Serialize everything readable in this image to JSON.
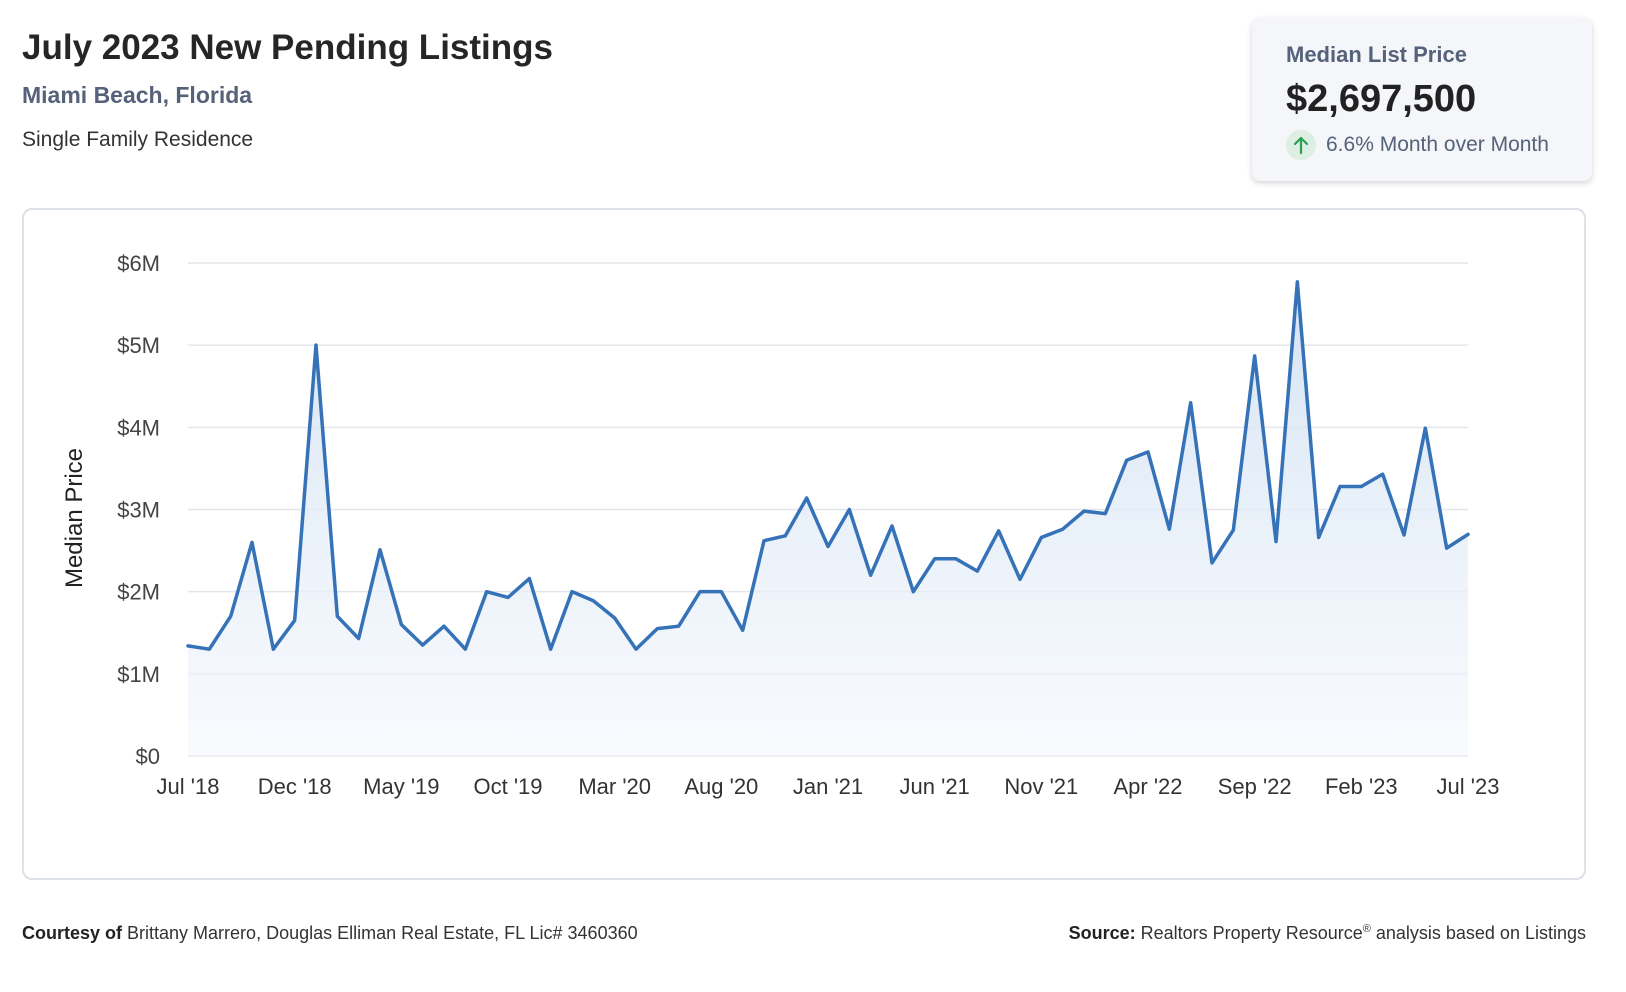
{
  "header": {
    "title": "July 2023 New Pending Listings",
    "location": "Miami Beach, Florida",
    "property_type": "Single Family Residence"
  },
  "stat_card": {
    "label": "Median List Price",
    "value": "$2,697,500",
    "change": "6.6% Month over Month",
    "change_direction": "up",
    "icon": "arrow-up-icon",
    "icon_color": "#2e9e55"
  },
  "chart_data": {
    "type": "area",
    "title": "",
    "xlabel": "",
    "ylabel": "Median Price",
    "ylim": [
      0,
      6000000
    ],
    "y_ticks": [
      0,
      1000000,
      2000000,
      3000000,
      4000000,
      5000000,
      6000000
    ],
    "y_tick_labels": [
      "$0",
      "$1M",
      "$2M",
      "$3M",
      "$4M",
      "$5M",
      "$6M"
    ],
    "x_tick_labels": [
      "Jul '18",
      "Dec '18",
      "May '19",
      "Oct '19",
      "Mar '20",
      "Aug '20",
      "Jan '21",
      "Jun '21",
      "Nov '21",
      "Apr '22",
      "Sep '22",
      "Feb '23",
      "Jul '23"
    ],
    "x_start": "2018-07",
    "x_end": "2023-07",
    "grid": true,
    "line_color": "#3572b8",
    "fill_color": "#dfe9f5",
    "series": [
      {
        "values": [
          1340000,
          1300000,
          1700000,
          2600000,
          1300000,
          1650000,
          5000000,
          1700000,
          1430000,
          2510000,
          1600000,
          1350000,
          1580000,
          1300000,
          2000000,
          1930000,
          2160000,
          1300000,
          2000000,
          1890000,
          1680000,
          1300000,
          1550000,
          1580000,
          2000000,
          2000000,
          1530000,
          2620000,
          2680000,
          3140000,
          2550000,
          3000000,
          2200000,
          2800000,
          2000000,
          2400000,
          2400000,
          2250000,
          2740000,
          2150000,
          2660000,
          2760000,
          2980000,
          2950000,
          3600000,
          3700000,
          2760000,
          4300000,
          2350000,
          2750000,
          4870000,
          2610000,
          5770000,
          2660000,
          3280000,
          3280000,
          3430000,
          2690000,
          3990000,
          2530000,
          2697500
        ]
      }
    ]
  },
  "footer": {
    "courtesy_label": "Courtesy of",
    "courtesy_text": "Brittany Marrero, Douglas Elliman Real Estate, FL Lic# 3460360",
    "source_label": "Source:",
    "source_name": "Realtors Property Resource",
    "source_mark": "®",
    "source_text": "analysis based on Listings"
  }
}
